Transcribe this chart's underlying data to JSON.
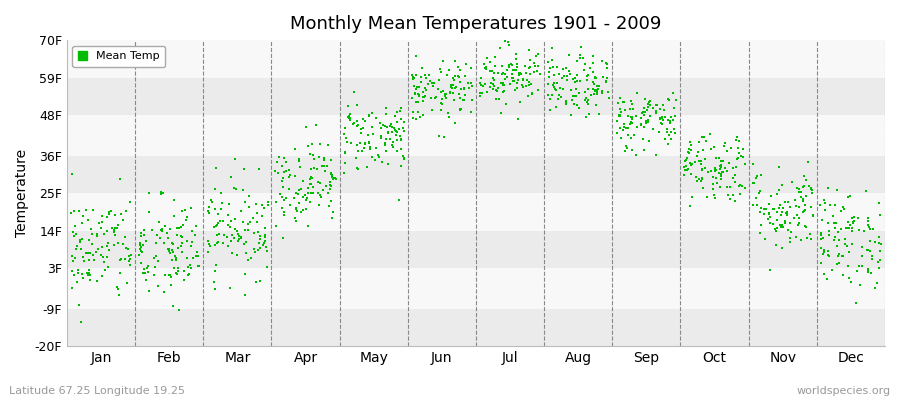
{
  "title": "Monthly Mean Temperatures 1901 - 2009",
  "ylabel": "Temperature",
  "xlabel_labels": [
    "Jan",
    "Feb",
    "Mar",
    "Apr",
    "May",
    "Jun",
    "Jul",
    "Aug",
    "Sep",
    "Oct",
    "Nov",
    "Dec"
  ],
  "ytick_labels": [
    "-20F",
    "-9F",
    "3F",
    "14F",
    "25F",
    "36F",
    "48F",
    "59F",
    "70F"
  ],
  "ytick_values": [
    -20,
    -9,
    3,
    14,
    25,
    36,
    48,
    59,
    70
  ],
  "ylim": [
    -20,
    70
  ],
  "dot_color": "#00bb00",
  "bg_color_light": "#ebebeb",
  "bg_color_white": "#f8f8f8",
  "fig_bg": "#ffffff",
  "legend_label": "Mean Temp",
  "subtitle_left": "Latitude 67.25 Longitude 19.25",
  "subtitle_right": "worldspecies.org",
  "start_year": 1901,
  "end_year": 2009,
  "monthly_means_C": [
    -13.0,
    -13.5,
    -9.5,
    -2.0,
    5.5,
    12.5,
    15.5,
    13.5,
    8.0,
    0.5,
    -6.5,
    -11.5
  ],
  "monthly_stds_C": [
    4.5,
    4.5,
    4.0,
    3.5,
    3.0,
    2.5,
    2.5,
    2.5,
    2.5,
    3.0,
    3.5,
    4.0
  ]
}
